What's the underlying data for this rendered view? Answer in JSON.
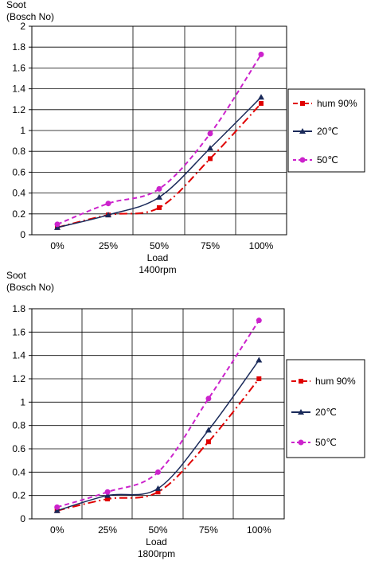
{
  "chart_data": [
    {
      "type": "line",
      "ylabel_line1": "Soot",
      "ylabel_line2": "(Bosch No)",
      "xlabel_line1": "Load",
      "xlabel_line2": "1400rpm",
      "categories": [
        "0%",
        "25%",
        "50%",
        "75%",
        "100%"
      ],
      "ylim": [
        0,
        2
      ],
      "yticks": [
        "0",
        "0.2",
        "0.4",
        "0.6",
        "0.8",
        "1",
        "1.2",
        "1.4",
        "1.6",
        "1.8",
        "2"
      ],
      "grid": true,
      "legend_position": "right",
      "series": [
        {
          "name": "hum 90%",
          "values": [
            0.07,
            0.19,
            0.26,
            0.73,
            1.26
          ],
          "color": "#e00000",
          "marker": "square",
          "dash": "dashdot"
        },
        {
          "name": "20℃",
          "values": [
            0.07,
            0.19,
            0.36,
            0.83,
            1.32
          ],
          "color": "#1a2a5a",
          "marker": "triangle",
          "dash": "solid"
        },
        {
          "name": "50℃",
          "values": [
            0.1,
            0.3,
            0.44,
            0.97,
            1.73
          ],
          "color": "#cc22cc",
          "marker": "circle",
          "dash": "dashed"
        }
      ]
    },
    {
      "type": "line",
      "ylabel_line1": "Soot",
      "ylabel_line2": "(Bosch No)",
      "xlabel_line1": "Load",
      "xlabel_line2": "1800rpm",
      "categories": [
        "0%",
        "25%",
        "50%",
        "75%",
        "100%"
      ],
      "ylim": [
        0,
        1.8
      ],
      "yticks": [
        "0",
        "0.2",
        "0.4",
        "0.6",
        "0.8",
        "1",
        "1.2",
        "1.4",
        "1.6",
        "1.8"
      ],
      "grid": true,
      "legend_position": "right",
      "series": [
        {
          "name": "hum 90%",
          "values": [
            0.07,
            0.17,
            0.23,
            0.66,
            1.2
          ],
          "color": "#e00000",
          "marker": "square",
          "dash": "dashdot"
        },
        {
          "name": "20℃",
          "values": [
            0.07,
            0.2,
            0.26,
            0.76,
            1.36
          ],
          "color": "#1a2a5a",
          "marker": "triangle",
          "dash": "solid"
        },
        {
          "name": "50℃",
          "values": [
            0.1,
            0.23,
            0.4,
            1.03,
            1.7
          ],
          "color": "#cc22cc",
          "marker": "circle",
          "dash": "dashed"
        }
      ]
    }
  ]
}
